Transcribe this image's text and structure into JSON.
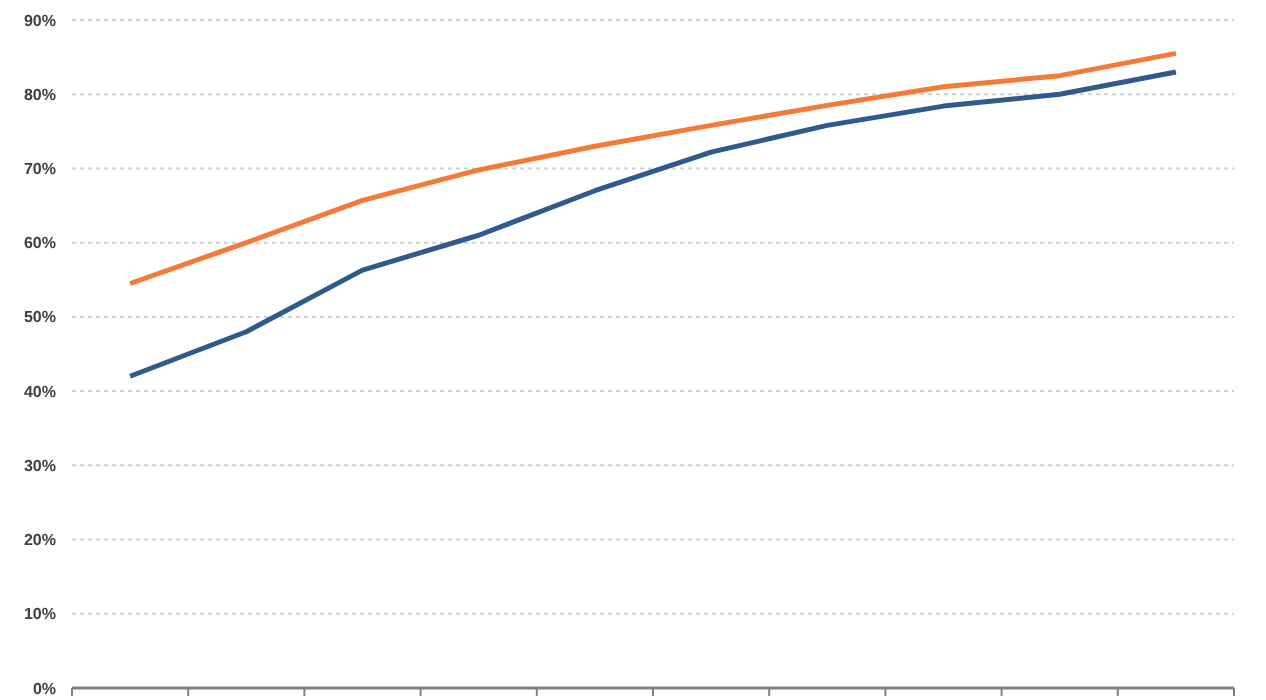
{
  "chart_data": {
    "type": "line",
    "categories": [
      null,
      null,
      null,
      null,
      null,
      null,
      null,
      null,
      null,
      null
    ],
    "series": [
      {
        "color": "#2f5a8c",
        "values": [
          42,
          48,
          56.3,
          61,
          67,
          72.2,
          75.8,
          78.4,
          80,
          83
        ]
      },
      {
        "color": "#f47a3a",
        "values": [
          54.5,
          60,
          65.7,
          69.8,
          73,
          75.8,
          78.5,
          81,
          82.5,
          85.5
        ]
      }
    ],
    "ylim": [
      0,
      90
    ],
    "yticks": [
      {
        "value": 0,
        "label": "0%"
      },
      {
        "value": 10,
        "label": "10%"
      },
      {
        "value": 20,
        "label": "20%"
      },
      {
        "value": 30,
        "label": "30%"
      },
      {
        "value": 40,
        "label": "40%"
      },
      {
        "value": 50,
        "label": "50%"
      },
      {
        "value": 60,
        "label": "60%"
      },
      {
        "value": 70,
        "label": "70%"
      },
      {
        "value": 80,
        "label": "80%"
      },
      {
        "value": 90,
        "label": "90%"
      }
    ],
    "grid": "y",
    "marker": "none",
    "line_style": "solid"
  }
}
